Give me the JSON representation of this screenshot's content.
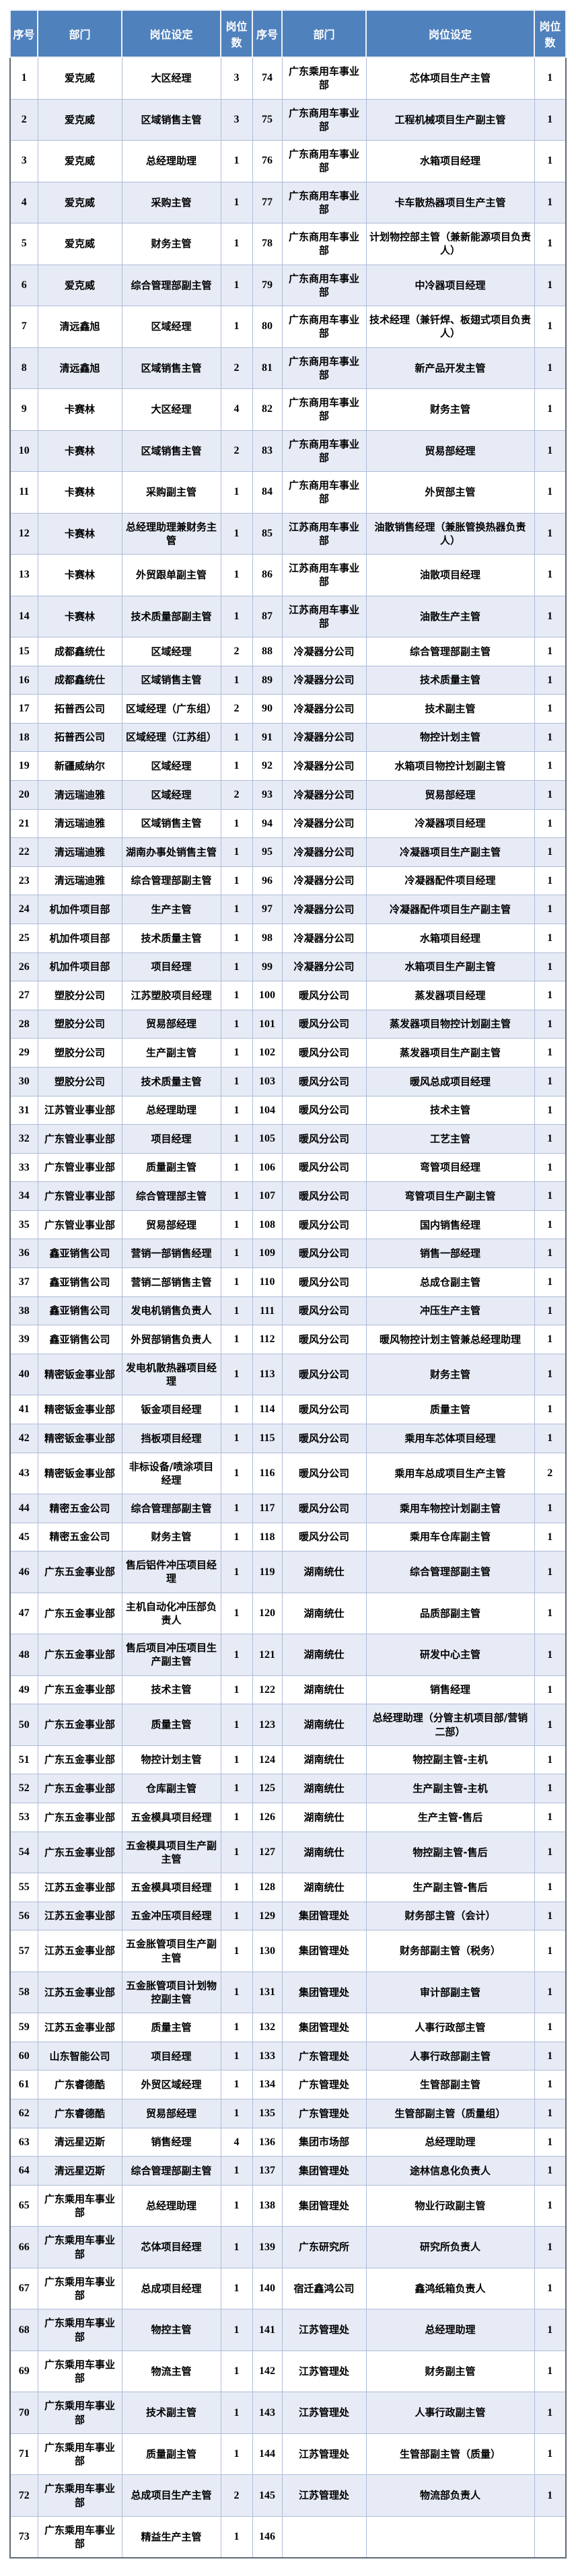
{
  "table": {
    "columns": [
      "序号",
      "部门",
      "岗位设定",
      "岗位数",
      "序号",
      "部门",
      "岗位设定",
      "岗位数"
    ],
    "column_kinds": [
      "seq",
      "dept",
      "position",
      "count",
      "seq",
      "dept",
      "position",
      "count"
    ],
    "rows": [
      [
        1,
        "爱克威",
        "大区经理",
        3,
        74,
        "广东乘用车事业部",
        "芯体项目生产主管",
        1
      ],
      [
        2,
        "爱克威",
        "区域销售主管",
        3,
        75,
        "广东商用车事业部",
        "工程机械项目生产副主管",
        1
      ],
      [
        3,
        "爱克威",
        "总经理助理",
        1,
        76,
        "广东商用车事业部",
        "水箱项目经理",
        1
      ],
      [
        4,
        "爱克威",
        "采购主管",
        1,
        77,
        "广东商用车事业部",
        "卡车散热器项目生产主管",
        1
      ],
      [
        5,
        "爱克威",
        "财务主管",
        1,
        78,
        "广东商用车事业部",
        "计划物控部主管（兼新能源项目负责人）",
        1
      ],
      [
        6,
        "爱克威",
        "综合管理部副主管",
        1,
        79,
        "广东商用车事业部",
        "中冷器项目经理",
        1
      ],
      [
        7,
        "清远鑫旭",
        "区域经理",
        1,
        80,
        "广东商用车事业部",
        "技术经理（兼钎焊、板翅式项目负责人）",
        1
      ],
      [
        8,
        "清远鑫旭",
        "区域销售主管",
        2,
        81,
        "广东商用车事业部",
        "新产品开发主管",
        1
      ],
      [
        9,
        "卡赛林",
        "大区经理",
        4,
        82,
        "广东商用车事业部",
        "财务主管",
        1
      ],
      [
        10,
        "卡赛林",
        "区域销售主管",
        2,
        83,
        "广东商用车事业部",
        "贸易部经理",
        1
      ],
      [
        11,
        "卡赛林",
        "采购副主管",
        1,
        84,
        "广东商用车事业部",
        "外贸部主管",
        1
      ],
      [
        12,
        "卡赛林",
        "总经理助理兼财务主管",
        1,
        85,
        "江苏商用车事业部",
        "油散销售经理（兼胀管换热器负责人）",
        1
      ],
      [
        13,
        "卡赛林",
        "外贸跟单副主管",
        1,
        86,
        "江苏商用车事业部",
        "油散项目经理",
        1
      ],
      [
        14,
        "卡赛林",
        "技术质量部副主管",
        1,
        87,
        "江苏商用车事业部",
        "油散生产主管",
        1
      ],
      [
        15,
        "成都鑫统仕",
        "区域经理",
        2,
        88,
        "冷凝器分公司",
        "综合管理部副主管",
        1
      ],
      [
        16,
        "成都鑫统仕",
        "区域销售主管",
        1,
        89,
        "冷凝器分公司",
        "技术质量主管",
        1
      ],
      [
        17,
        "拓普西公司",
        "区域经理（广东组）",
        2,
        90,
        "冷凝器分公司",
        "技术副主管",
        1
      ],
      [
        18,
        "拓普西公司",
        "区域经理（江苏组）",
        1,
        91,
        "冷凝器分公司",
        "物控计划主管",
        1
      ],
      [
        19,
        "新疆威纳尔",
        "区域经理",
        1,
        92,
        "冷凝器分公司",
        "水箱项目物控计划副主管",
        1
      ],
      [
        20,
        "清远瑞迪雅",
        "区域经理",
        2,
        93,
        "冷凝器分公司",
        "贸易部经理",
        1
      ],
      [
        21,
        "清远瑞迪雅",
        "区域销售主管",
        1,
        94,
        "冷凝器分公司",
        "冷凝器项目经理",
        1
      ],
      [
        22,
        "清远瑞迪雅",
        "湖南办事处销售主管",
        1,
        95,
        "冷凝器分公司",
        "冷凝器项目生产副主管",
        1
      ],
      [
        23,
        "清远瑞迪雅",
        "综合管理部副主管",
        1,
        96,
        "冷凝器分公司",
        "冷凝器配件项目经理",
        1
      ],
      [
        24,
        "机加件项目部",
        "生产主管",
        1,
        97,
        "冷凝器分公司",
        "冷凝器配件项目生产副主管",
        1
      ],
      [
        25,
        "机加件项目部",
        "技术质量主管",
        1,
        98,
        "冷凝器分公司",
        "水箱项目经理",
        1
      ],
      [
        26,
        "机加件项目部",
        "项目经理",
        1,
        99,
        "冷凝器分公司",
        "水箱项目生产副主管",
        1
      ],
      [
        27,
        "塑胶分公司",
        "江苏塑胶项目经理",
        1,
        100,
        "暖风分公司",
        "蒸发器项目经理",
        1
      ],
      [
        28,
        "塑胶分公司",
        "贸易部经理",
        1,
        101,
        "暖风分公司",
        "蒸发器项目物控计划副主管",
        1
      ],
      [
        29,
        "塑胶分公司",
        "生产副主管",
        1,
        102,
        "暖风分公司",
        "蒸发器项目生产副主管",
        1
      ],
      [
        30,
        "塑胶分公司",
        "技术质量主管",
        1,
        103,
        "暖风分公司",
        "暖风总成项目经理",
        1
      ],
      [
        31,
        "江苏管业事业部",
        "总经理助理",
        1,
        104,
        "暖风分公司",
        "技术主管",
        1
      ],
      [
        32,
        "广东管业事业部",
        "项目经理",
        1,
        105,
        "暖风分公司",
        "工艺主管",
        1
      ],
      [
        33,
        "广东管业事业部",
        "质量副主管",
        1,
        106,
        "暖风分公司",
        "弯管项目经理",
        1
      ],
      [
        34,
        "广东管业事业部",
        "综合管理部主管",
        1,
        107,
        "暖风分公司",
        "弯管项目生产副主管",
        1
      ],
      [
        35,
        "广东管业事业部",
        "贸易部经理",
        1,
        108,
        "暖风分公司",
        "国内销售经理",
        1
      ],
      [
        36,
        "鑫亚销售公司",
        "营销一部销售经理",
        1,
        109,
        "暖风分公司",
        "销售一部经理",
        1
      ],
      [
        37,
        "鑫亚销售公司",
        "营销二部销售主管",
        1,
        110,
        "暖风分公司",
        "总成仓副主管",
        1
      ],
      [
        38,
        "鑫亚销售公司",
        "发电机销售负责人",
        1,
        111,
        "暖风分公司",
        "冲压生产主管",
        1
      ],
      [
        39,
        "鑫亚销售公司",
        "外贸部销售负责人",
        1,
        112,
        "暖风分公司",
        "暖风物控计划主管兼总经理助理",
        1
      ],
      [
        40,
        "精密钣金事业部",
        "发电机散热器项目经理",
        1,
        113,
        "暖风分公司",
        "财务主管",
        1
      ],
      [
        41,
        "精密钣金事业部",
        "钣金项目经理",
        1,
        114,
        "暖风分公司",
        "质量主管",
        1
      ],
      [
        42,
        "精密钣金事业部",
        "挡板项目经理",
        1,
        115,
        "暖风分公司",
        "乘用车芯体项目经理",
        1
      ],
      [
        43,
        "精密钣金事业部",
        "非标设备/喷涂项目经理",
        1,
        116,
        "暖风分公司",
        "乘用车总成项目生产主管",
        2
      ],
      [
        44,
        "精密五金公司",
        "综合管理部副主管",
        1,
        117,
        "暖风分公司",
        "乘用车物控计划副主管",
        1
      ],
      [
        45,
        "精密五金公司",
        "财务主管",
        1,
        118,
        "暖风分公司",
        "乘用车仓库副主管",
        1
      ],
      [
        46,
        "广东五金事业部",
        "售后铝件冲压项目经理",
        1,
        119,
        "湖南统仕",
        "综合管理部副主管",
        1
      ],
      [
        47,
        "广东五金事业部",
        "主机自动化冲压部负责人",
        1,
        120,
        "湖南统仕",
        "品质部副主管",
        1
      ],
      [
        48,
        "广东五金事业部",
        "售后项目冲压项目生产副主管",
        1,
        121,
        "湖南统仕",
        "研发中心主管",
        1
      ],
      [
        49,
        "广东五金事业部",
        "技术主管",
        1,
        122,
        "湖南统仕",
        "销售经理",
        1
      ],
      [
        50,
        "广东五金事业部",
        "质量主管",
        1,
        123,
        "湖南统仕",
        "总经理助理（分管主机项目部/营销二部）",
        1
      ],
      [
        51,
        "广东五金事业部",
        "物控计划主管",
        1,
        124,
        "湖南统仕",
        "物控副主管-主机",
        1
      ],
      [
        52,
        "广东五金事业部",
        "仓库副主管",
        1,
        125,
        "湖南统仕",
        "生产副主管-主机",
        1
      ],
      [
        53,
        "广东五金事业部",
        "五金模具项目经理",
        1,
        126,
        "湖南统仕",
        "生产主管-售后",
        1
      ],
      [
        54,
        "广东五金事业部",
        "五金模具项目生产副主管",
        1,
        127,
        "湖南统仕",
        "物控副主管-售后",
        1
      ],
      [
        55,
        "江苏五金事业部",
        "五金模具项目经理",
        1,
        128,
        "湖南统仕",
        "生产副主管-售后",
        1
      ],
      [
        56,
        "江苏五金事业部",
        "五金冲压项目经理",
        1,
        129,
        "集团管理处",
        "财务部主管（会计）",
        1
      ],
      [
        57,
        "江苏五金事业部",
        "五金胀管项目生产副主管",
        1,
        130,
        "集团管理处",
        "财务部副主管（税务）",
        1
      ],
      [
        58,
        "江苏五金事业部",
        "五金胀管项目计划物控副主管",
        1,
        131,
        "集团管理处",
        "审计部副主管",
        1
      ],
      [
        59,
        "江苏五金事业部",
        "质量主管",
        1,
        132,
        "集团管理处",
        "人事行政部主管",
        1
      ],
      [
        60,
        "山东智能公司",
        "项目经理",
        1,
        133,
        "广东管理处",
        "人事行政部副主管",
        1
      ],
      [
        61,
        "广东睿德酷",
        "外贸区域经理",
        1,
        134,
        "广东管理处",
        "生管部副主管",
        1
      ],
      [
        62,
        "广东睿德酷",
        "贸易部经理",
        1,
        135,
        "广东管理处",
        "生管部副主管（质量组）",
        1
      ],
      [
        63,
        "清远星迈斯",
        "销售经理",
        4,
        136,
        "集团市场部",
        "总经理助理",
        1
      ],
      [
        64,
        "清远星迈斯",
        "综合管理部副主管",
        1,
        137,
        "集团管理处",
        "途林信息化负责人",
        1
      ],
      [
        65,
        "广东乘用车事业部",
        "总经理助理",
        1,
        138,
        "集团管理处",
        "物业行政副主管",
        1
      ],
      [
        66,
        "广东乘用车事业部",
        "芯体项目经理",
        1,
        139,
        "广东研究所",
        "研究所负责人",
        1
      ],
      [
        67,
        "广东乘用车事业部",
        "总成项目经理",
        1,
        140,
        "宿迁鑫鸿公司",
        "鑫鸿纸箱负责人",
        1
      ],
      [
        68,
        "广东乘用车事业部",
        "物控主管",
        1,
        141,
        "江苏管理处",
        "总经理助理",
        1
      ],
      [
        69,
        "广东乘用车事业部",
        "物流主管",
        1,
        142,
        "江苏管理处",
        "财务副主管",
        1
      ],
      [
        70,
        "广东乘用车事业部",
        "技术副主管",
        1,
        143,
        "江苏管理处",
        "人事行政副主管",
        1
      ],
      [
        71,
        "广东乘用车事业部",
        "质量副主管",
        1,
        144,
        "江苏管理处",
        "生管部副主管（质量）",
        1
      ],
      [
        72,
        "广东乘用车事业部",
        "总成项目生产主管",
        2,
        145,
        "江苏管理处",
        "物流部负责人",
        1
      ],
      [
        73,
        "广东乘用车事业部",
        "精益生产主管",
        1,
        146,
        "",
        "",
        ""
      ]
    ]
  },
  "colors": {
    "header_bg": "#4f81bd",
    "header_text": "#ffffff",
    "row_even_bg": "#e7ebf6",
    "row_odd_bg": "#ffffff",
    "grid_line": "#aebcd8",
    "outer_border": "#5f6b76",
    "body_text": "#000000"
  }
}
